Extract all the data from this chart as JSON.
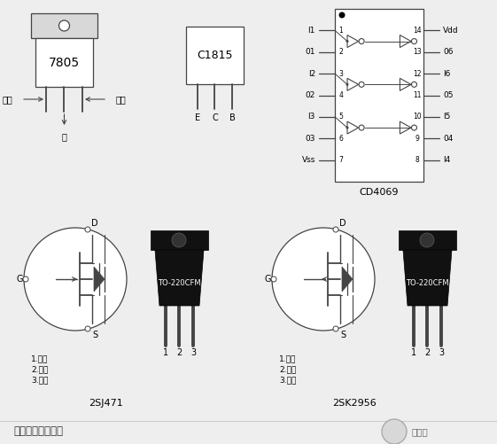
{
  "bg_color": "#eeeeee",
  "line_color": "#444444",
  "title": "逆变器所用元器件",
  "comp_7805": "7805",
  "comp_c1815": "C1815",
  "comp_cd4069": "CD4069",
  "comp_2sj471": "2SJ471",
  "comp_2sk2956": "2SK2956",
  "label_input": "输入",
  "label_output": "输出",
  "label_ground": "地",
  "label_E": "E",
  "label_C": "C",
  "label_B": "B",
  "label_to220": "TO-220CFM",
  "label_1gate": "1.栅极",
  "label_2drain": "2.漏极",
  "label_3source": "3.源极",
  "label_D": "D",
  "label_G": "G",
  "label_S": "S",
  "label_Vdd": "Vdd",
  "label_Vss": "Vss",
  "cd4069_left_pins": [
    "I1",
    "01",
    "I2",
    "02",
    "I3",
    "03",
    "Vss"
  ],
  "cd4069_right_pins": [
    "Vdd",
    "06",
    "I6",
    "05",
    "I5",
    "04",
    "I4"
  ],
  "watermark": "百月辰"
}
